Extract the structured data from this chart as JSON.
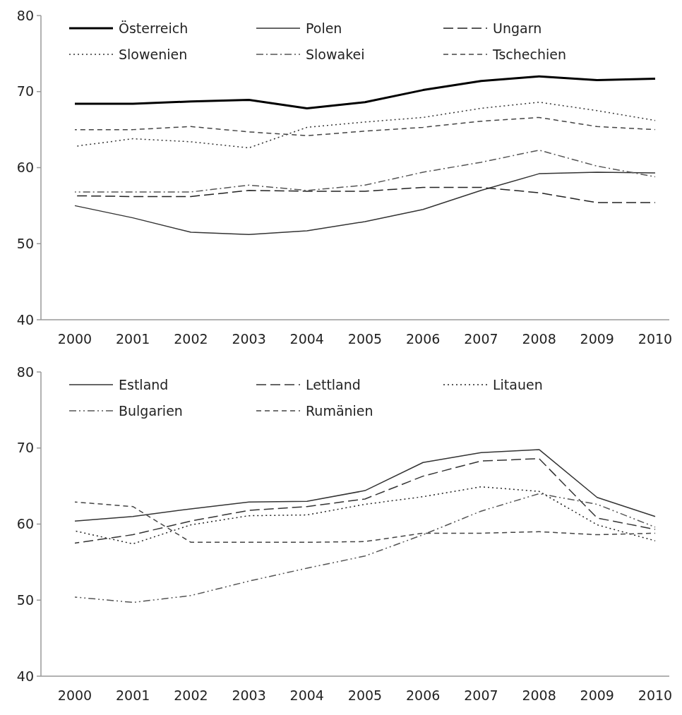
{
  "chart_data": [
    {
      "type": "line",
      "categories": [
        "2000",
        "2001",
        "2002",
        "2003",
        "2004",
        "2005",
        "2006",
        "2007",
        "2008",
        "2009",
        "2010"
      ],
      "ylim": [
        40,
        80
      ],
      "yticks": [
        40,
        50,
        60,
        70,
        80
      ],
      "legend": "top",
      "grid": false,
      "series": [
        {
          "name": "Österreich",
          "color": "#000000",
          "line_style": "solid",
          "values": [
            68.4,
            68.4,
            68.7,
            68.9,
            67.8,
            68.6,
            70.2,
            71.4,
            72.0,
            71.5,
            71.7
          ]
        },
        {
          "name": "Polen",
          "color": "#333333",
          "line_style": "solid",
          "values": [
            55.0,
            53.4,
            51.5,
            51.2,
            51.7,
            52.9,
            54.5,
            57.0,
            59.2,
            59.4,
            59.3
          ]
        },
        {
          "name": "Ungarn",
          "color": "#222222",
          "line_style": "longdash",
          "values": [
            56.3,
            56.2,
            56.2,
            57.0,
            56.9,
            56.9,
            57.4,
            57.4,
            56.7,
            55.4,
            55.4
          ]
        },
        {
          "name": "Slowenien",
          "color": "#333333",
          "line_style": "dotted",
          "values": [
            62.8,
            63.8,
            63.4,
            62.6,
            65.3,
            66.0,
            66.6,
            67.8,
            68.6,
            67.5,
            66.2
          ]
        },
        {
          "name": "Slowakei",
          "color": "#555555",
          "line_style": "dashdot",
          "values": [
            56.8,
            56.8,
            56.8,
            57.7,
            57.0,
            57.7,
            59.4,
            60.7,
            62.3,
            60.2,
            58.8
          ]
        },
        {
          "name": "Tschechien",
          "color": "#444444",
          "line_style": "dashed",
          "values": [
            65.0,
            65.0,
            65.4,
            64.7,
            64.2,
            64.8,
            65.3,
            66.1,
            66.6,
            65.4,
            65.0
          ]
        }
      ]
    },
    {
      "type": "line",
      "categories": [
        "2000",
        "2001",
        "2002",
        "2003",
        "2004",
        "2005",
        "2006",
        "2007",
        "2008",
        "2009",
        "2010"
      ],
      "ylim": [
        40,
        80
      ],
      "yticks": [
        40,
        50,
        60,
        70,
        80
      ],
      "legend": "top",
      "grid": false,
      "series": [
        {
          "name": "Estland",
          "color": "#333333",
          "line_style": "solid",
          "values": [
            60.4,
            61.0,
            62.0,
            62.9,
            63.0,
            64.4,
            68.1,
            69.4,
            69.8,
            63.5,
            61.0
          ]
        },
        {
          "name": "Lettland",
          "color": "#333333",
          "line_style": "longdash",
          "values": [
            57.5,
            58.6,
            60.4,
            61.8,
            62.3,
            63.3,
            66.3,
            68.3,
            68.6,
            60.8,
            59.3
          ]
        },
        {
          "name": "Litauen",
          "color": "#222222",
          "line_style": "dotted",
          "values": [
            59.1,
            57.4,
            59.9,
            61.1,
            61.2,
            62.6,
            63.6,
            64.9,
            64.3,
            59.9,
            57.8
          ]
        },
        {
          "name": "Bulgarien",
          "color": "#555555",
          "line_style": "dashdotdot",
          "values": [
            50.4,
            49.7,
            50.6,
            52.5,
            54.2,
            55.8,
            58.6,
            61.7,
            64.0,
            62.6,
            59.6
          ]
        },
        {
          "name": "Rumänien",
          "color": "#444444",
          "line_style": "dashed",
          "values": [
            62.9,
            62.3,
            57.6,
            57.6,
            57.6,
            57.7,
            58.8,
            58.8,
            59.0,
            58.6,
            58.8
          ]
        }
      ]
    }
  ]
}
